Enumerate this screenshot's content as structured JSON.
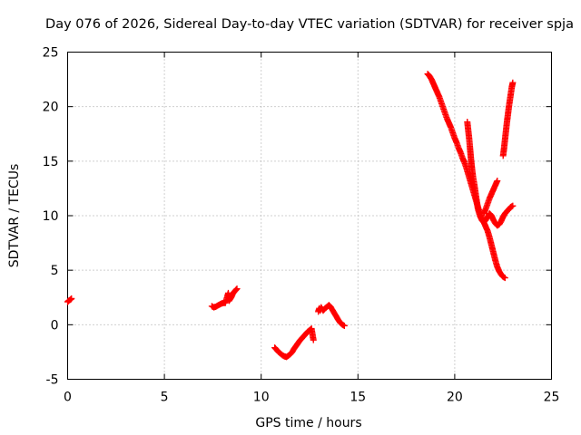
{
  "chart_data": {
    "type": "scatter",
    "title": "Day 076 of 2026, Sidereal Day-to-day VTEC variation (SDTVAR) for receiver spja",
    "xlabel": "GPS time / hours",
    "ylabel": "SDTVAR / TECUs",
    "xlim": [
      0,
      25
    ],
    "ylim": [
      -5,
      25
    ],
    "xticks": [
      "0",
      "5",
      "10",
      "15",
      "20",
      "25"
    ],
    "yticks": [
      "-5",
      "0",
      "5",
      "10",
      "15",
      "20",
      "25"
    ],
    "grid": true,
    "legend": "none",
    "marker": "+",
    "color": "#ff0000",
    "segments": [
      [
        [
          0.0,
          2.1
        ],
        [
          0.05,
          2.2
        ],
        [
          0.1,
          2.25
        ],
        [
          0.15,
          2.3
        ],
        [
          0.2,
          2.4
        ]
      ],
      [
        [
          7.45,
          1.7
        ],
        [
          7.55,
          1.6
        ],
        [
          7.65,
          1.65
        ],
        [
          7.75,
          1.75
        ],
        [
          7.85,
          1.85
        ],
        [
          7.95,
          1.95
        ],
        [
          8.05,
          2.0
        ],
        [
          8.15,
          2.0
        ],
        [
          8.25,
          2.6
        ],
        [
          8.3,
          2.9
        ],
        [
          8.35,
          2.2
        ],
        [
          8.45,
          2.5
        ],
        [
          8.55,
          2.9
        ],
        [
          8.65,
          3.1
        ],
        [
          8.75,
          3.3
        ]
      ],
      [
        [
          10.7,
          -2.1
        ],
        [
          10.8,
          -2.3
        ],
        [
          10.9,
          -2.5
        ],
        [
          11.0,
          -2.65
        ],
        [
          11.1,
          -2.8
        ],
        [
          11.2,
          -2.9
        ],
        [
          11.3,
          -2.95
        ],
        [
          11.4,
          -2.85
        ],
        [
          11.5,
          -2.7
        ],
        [
          11.6,
          -2.5
        ],
        [
          11.7,
          -2.2
        ],
        [
          11.8,
          -1.95
        ],
        [
          11.9,
          -1.7
        ],
        [
          12.0,
          -1.45
        ],
        [
          12.1,
          -1.25
        ],
        [
          12.2,
          -1.05
        ],
        [
          12.3,
          -0.85
        ],
        [
          12.4,
          -0.65
        ],
        [
          12.5,
          -0.5
        ],
        [
          12.6,
          -0.35
        ],
        [
          12.7,
          -1.4
        ]
      ],
      [
        [
          12.95,
          1.2
        ],
        [
          13.0,
          1.5
        ],
        [
          13.05,
          1.3
        ],
        [
          13.1,
          1.6
        ],
        [
          13.2,
          1.3
        ],
        [
          13.3,
          1.5
        ],
        [
          13.4,
          1.65
        ],
        [
          13.5,
          1.8
        ],
        [
          13.6,
          1.6
        ],
        [
          13.7,
          1.3
        ],
        [
          13.8,
          1.0
        ],
        [
          13.9,
          0.7
        ],
        [
          14.0,
          0.4
        ],
        [
          14.1,
          0.15
        ],
        [
          14.2,
          0.0
        ],
        [
          14.3,
          -0.1
        ]
      ],
      [
        [
          18.6,
          23.0
        ],
        [
          18.7,
          22.8
        ],
        [
          18.8,
          22.5
        ],
        [
          18.9,
          22.1
        ],
        [
          19.0,
          21.7
        ],
        [
          19.1,
          21.3
        ],
        [
          19.2,
          20.9
        ],
        [
          19.3,
          20.4
        ],
        [
          19.4,
          19.9
        ],
        [
          19.5,
          19.4
        ],
        [
          19.6,
          18.9
        ],
        [
          19.7,
          18.5
        ],
        [
          19.8,
          18.1
        ],
        [
          19.9,
          17.6
        ],
        [
          20.0,
          17.1
        ],
        [
          20.1,
          16.7
        ],
        [
          20.2,
          16.2
        ],
        [
          20.3,
          15.8
        ],
        [
          20.4,
          15.3
        ],
        [
          20.5,
          14.9
        ],
        [
          20.6,
          14.4
        ],
        [
          20.7,
          13.8
        ],
        [
          20.8,
          13.2
        ],
        [
          20.9,
          12.6
        ],
        [
          21.0,
          12.0
        ],
        [
          21.1,
          11.4
        ],
        [
          21.2,
          10.8
        ],
        [
          21.3,
          10.3
        ],
        [
          21.4,
          9.8
        ],
        [
          21.5,
          9.4
        ],
        [
          21.6,
          9.0
        ],
        [
          21.7,
          8.6
        ],
        [
          21.8,
          8.0
        ],
        [
          21.9,
          7.3
        ],
        [
          22.0,
          6.6
        ],
        [
          22.1,
          5.9
        ],
        [
          22.2,
          5.3
        ],
        [
          22.3,
          4.9
        ],
        [
          22.4,
          4.6
        ],
        [
          22.5,
          4.4
        ],
        [
          22.6,
          4.3
        ]
      ],
      [
        [
          20.65,
          18.6
        ],
        [
          20.7,
          17.8
        ],
        [
          20.75,
          17.0
        ],
        [
          20.8,
          16.0
        ],
        [
          20.85,
          15.0
        ],
        [
          20.9,
          14.2
        ],
        [
          20.95,
          13.5
        ],
        [
          21.0,
          13.0
        ],
        [
          21.05,
          12.4
        ],
        [
          21.1,
          11.8
        ],
        [
          21.15,
          11.2
        ],
        [
          21.2,
          10.6
        ],
        [
          21.3,
          10.0
        ],
        [
          21.4,
          9.6
        ],
        [
          21.5,
          9.4
        ],
        [
          21.6,
          9.6
        ],
        [
          21.7,
          9.9
        ],
        [
          21.8,
          10.2
        ],
        [
          21.9,
          10.0
        ],
        [
          22.0,
          9.6
        ],
        [
          22.1,
          9.3
        ],
        [
          22.2,
          9.1
        ],
        [
          22.3,
          9.2
        ],
        [
          22.4,
          9.5
        ],
        [
          22.5,
          9.9
        ],
        [
          22.6,
          10.2
        ],
        [
          22.7,
          10.4
        ],
        [
          22.8,
          10.6
        ],
        [
          22.9,
          10.8
        ],
        [
          23.0,
          10.9
        ]
      ],
      [
        [
          21.5,
          10.2
        ],
        [
          21.6,
          10.6
        ],
        [
          21.7,
          11.1
        ],
        [
          21.8,
          11.6
        ],
        [
          21.9,
          12.0
        ],
        [
          22.0,
          12.4
        ],
        [
          22.1,
          12.8
        ],
        [
          22.2,
          13.2
        ]
      ],
      [
        [
          22.5,
          15.5
        ],
        [
          22.55,
          16.2
        ],
        [
          22.6,
          17.0
        ],
        [
          22.65,
          17.8
        ],
        [
          22.7,
          18.6
        ],
        [
          22.75,
          19.3
        ],
        [
          22.8,
          20.0
        ],
        [
          22.85,
          20.6
        ],
        [
          22.9,
          21.2
        ],
        [
          22.95,
          21.8
        ],
        [
          23.0,
          22.2
        ]
      ]
    ]
  }
}
